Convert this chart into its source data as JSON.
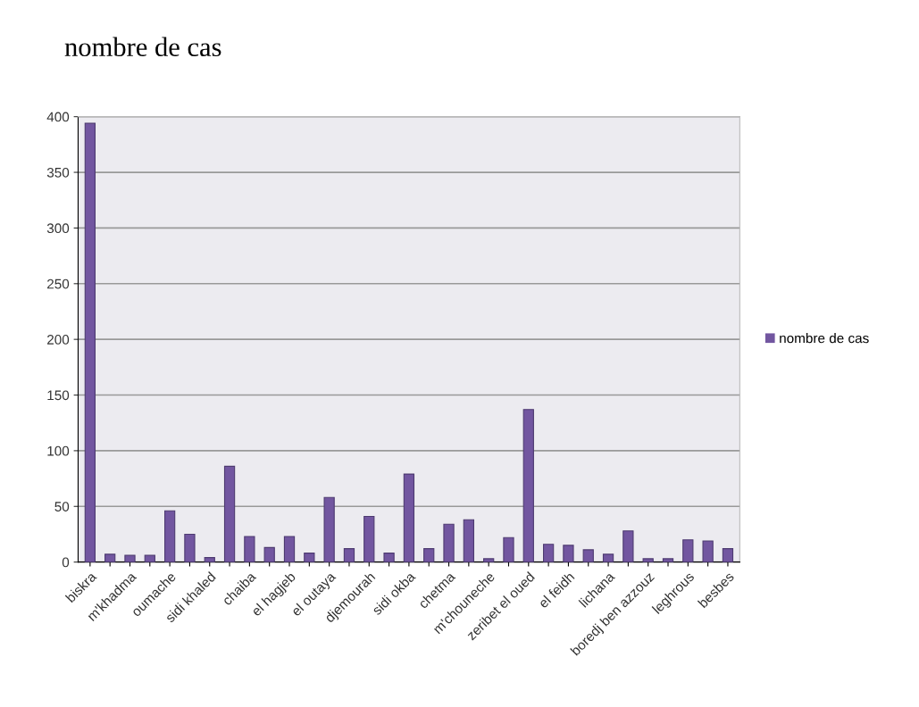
{
  "chart_data": {
    "type": "bar",
    "title": "nombre de cas",
    "categories": [
      "biskra",
      null,
      "m'khadma",
      null,
      "oumache",
      null,
      "sidi khaled",
      null,
      "chaiba",
      null,
      "el hagjeb",
      null,
      "el outaya",
      null,
      "djemourah",
      null,
      "sidi okba",
      null,
      "chetma",
      null,
      "m'chouneche",
      null,
      "zeribet el oued",
      null,
      "el feidh",
      null,
      "lichana",
      null,
      "boredj ben azzouz",
      null,
      "leghrous",
      null,
      "besbes"
    ],
    "series": [
      {
        "name": "nombre de cas",
        "color": "#7256a0",
        "values": [
          394,
          7,
          6,
          6,
          46,
          25,
          4,
          86,
          23,
          13,
          23,
          8,
          58,
          12,
          41,
          8,
          79,
          12,
          34,
          38,
          3,
          22,
          137,
          16,
          15,
          11,
          7,
          28,
          3,
          3,
          20,
          19,
          12
        ]
      }
    ],
    "ylim": [
      0,
      400
    ],
    "yticks": [
      0,
      50,
      100,
      150,
      200,
      250,
      300,
      350,
      400
    ],
    "grid": "y",
    "legend": "right"
  }
}
